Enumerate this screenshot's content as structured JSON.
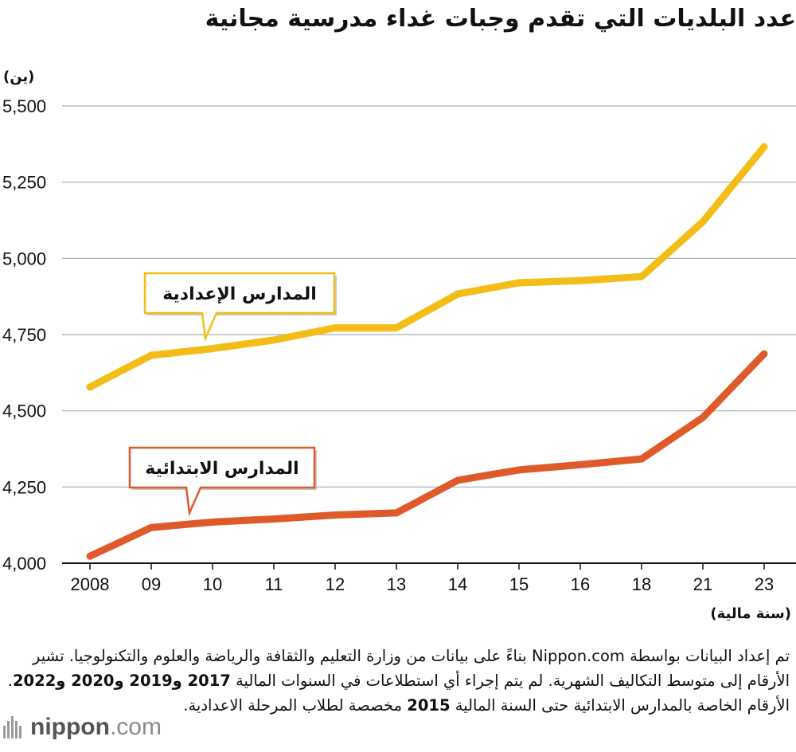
{
  "title": "عدد البلديات التي تقدم وجبات غداء مدرسية مجانية",
  "unit_label": "(ين)",
  "x_unit_label": "(سنة مالية)",
  "colors": {
    "junior_high": "#f2bd16",
    "elementary": "#df5a2b",
    "grid": "#aaaaaa"
  },
  "chart_data": {
    "type": "line",
    "categories": [
      "2008",
      "09",
      "10",
      "11",
      "12",
      "13",
      "14",
      "15",
      "16",
      "18",
      "21",
      "23"
    ],
    "ylim": [
      4000,
      5500
    ],
    "yticks": [
      "4,000",
      "4,250",
      "4,500",
      "4,750",
      "5,000",
      "5,250",
      "5,500"
    ],
    "ytick_values": [
      4000,
      4250,
      4500,
      4750,
      5000,
      5250,
      5500
    ],
    "grid": "horizontal",
    "series": [
      {
        "name": "المدارس الإعدادية",
        "key": "junior_high",
        "values": [
          4578,
          4682,
          4704,
          4732,
          4772,
          4772,
          4883,
          4920,
          4927,
          4940,
          5120,
          5366
        ]
      },
      {
        "name": "المدارس الابتدائية",
        "key": "elementary",
        "values": [
          4023,
          4117,
          4135,
          4145,
          4158,
          4165,
          4272,
          4306,
          4323,
          4342,
          4478,
          4687
        ]
      }
    ]
  },
  "note": {
    "part1": "تم إعداد البيانات بواسطة Nippon.com بناءً على بيانات من وزارة التعليم والثقافة والرياضة والعلوم والتكنولوجيا. تشير الأرقام إلى متوسط التكاليف الشهرية. لم يتم إجراء أي استطلاعات في السنوات المالية ",
    "years_bold": "2017 و2019 و2020 و2022",
    "part2": ". الأرقام الخاصة بالمدارس الابتدائية حتى السنة المالية ",
    "year2015": "2015",
    "part3": " مخصصة لطلاب المرحلة الاعدادية."
  },
  "logo": {
    "bold": "nippon",
    "rest": ".com",
    "icon": "nippon-flame-icon"
  }
}
